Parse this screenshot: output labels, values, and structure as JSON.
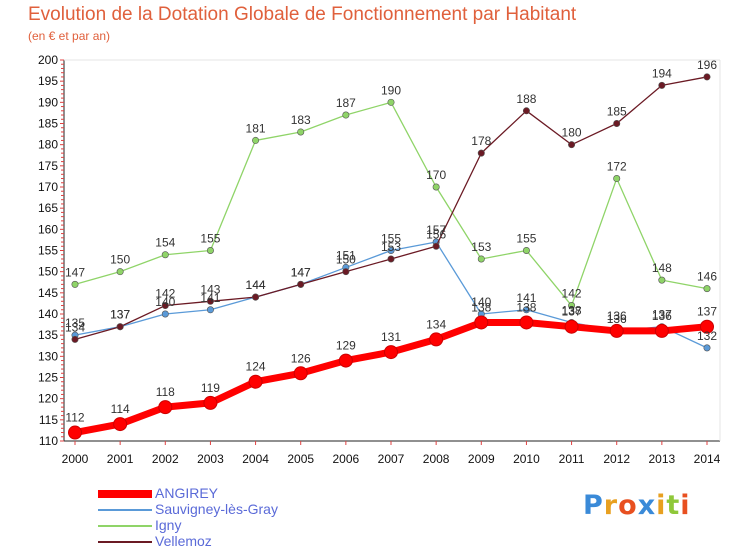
{
  "chart_data": {
    "type": "line",
    "title": "Evolution de la Dotation Globale de Fonctionnement par Habitant",
    "subtitle": "(en € et par an)",
    "xlabel": "",
    "ylabel": "",
    "x": [
      "2000",
      "2001",
      "2002",
      "2003",
      "2004",
      "2005",
      "2006",
      "2007",
      "2008",
      "2009",
      "2010",
      "2011",
      "2012",
      "2013",
      "2014"
    ],
    "ylim": [
      110,
      200
    ],
    "yticks": [
      110,
      115,
      120,
      125,
      130,
      135,
      140,
      145,
      150,
      155,
      160,
      165,
      170,
      175,
      180,
      185,
      190,
      195,
      200
    ],
    "grid": false,
    "legend_position": "bottom-left",
    "series": [
      {
        "name": "ANGIREY",
        "color": "#ff0000",
        "values": [
          112,
          114,
          118,
          119,
          124,
          126,
          129,
          131,
          134,
          138,
          138,
          137,
          136,
          136,
          137
        ]
      },
      {
        "name": "Sauvigney-lès-Gray",
        "color": "#5a9ad8",
        "values": [
          135,
          137,
          140,
          141,
          144,
          147,
          151,
          155,
          157,
          140,
          141,
          138,
          136,
          137,
          132
        ]
      },
      {
        "name": "Igny",
        "color": "#8fd468",
        "values": [
          147,
          150,
          154,
          155,
          181,
          183,
          187,
          190,
          170,
          153,
          155,
          142,
          172,
          148,
          146
        ]
      },
      {
        "name": "Vellemoz",
        "color": "#6b1a24",
        "values": [
          134,
          137,
          142,
          143,
          144,
          147,
          150,
          153,
          156,
          178,
          188,
          180,
          185,
          194,
          196
        ]
      }
    ]
  },
  "brand": {
    "text": "Proxiti",
    "letters": [
      {
        "ch": "P",
        "color": "#3a8ad8"
      },
      {
        "ch": "r",
        "color": "#e8a020"
      },
      {
        "ch": "o",
        "color": "#e85020"
      },
      {
        "ch": "x",
        "color": "#3a8ad8"
      },
      {
        "ch": "i",
        "color": "#e8a020"
      },
      {
        "ch": "t",
        "color": "#8fc83a"
      },
      {
        "ch": "i",
        "color": "#e85020"
      }
    ]
  }
}
